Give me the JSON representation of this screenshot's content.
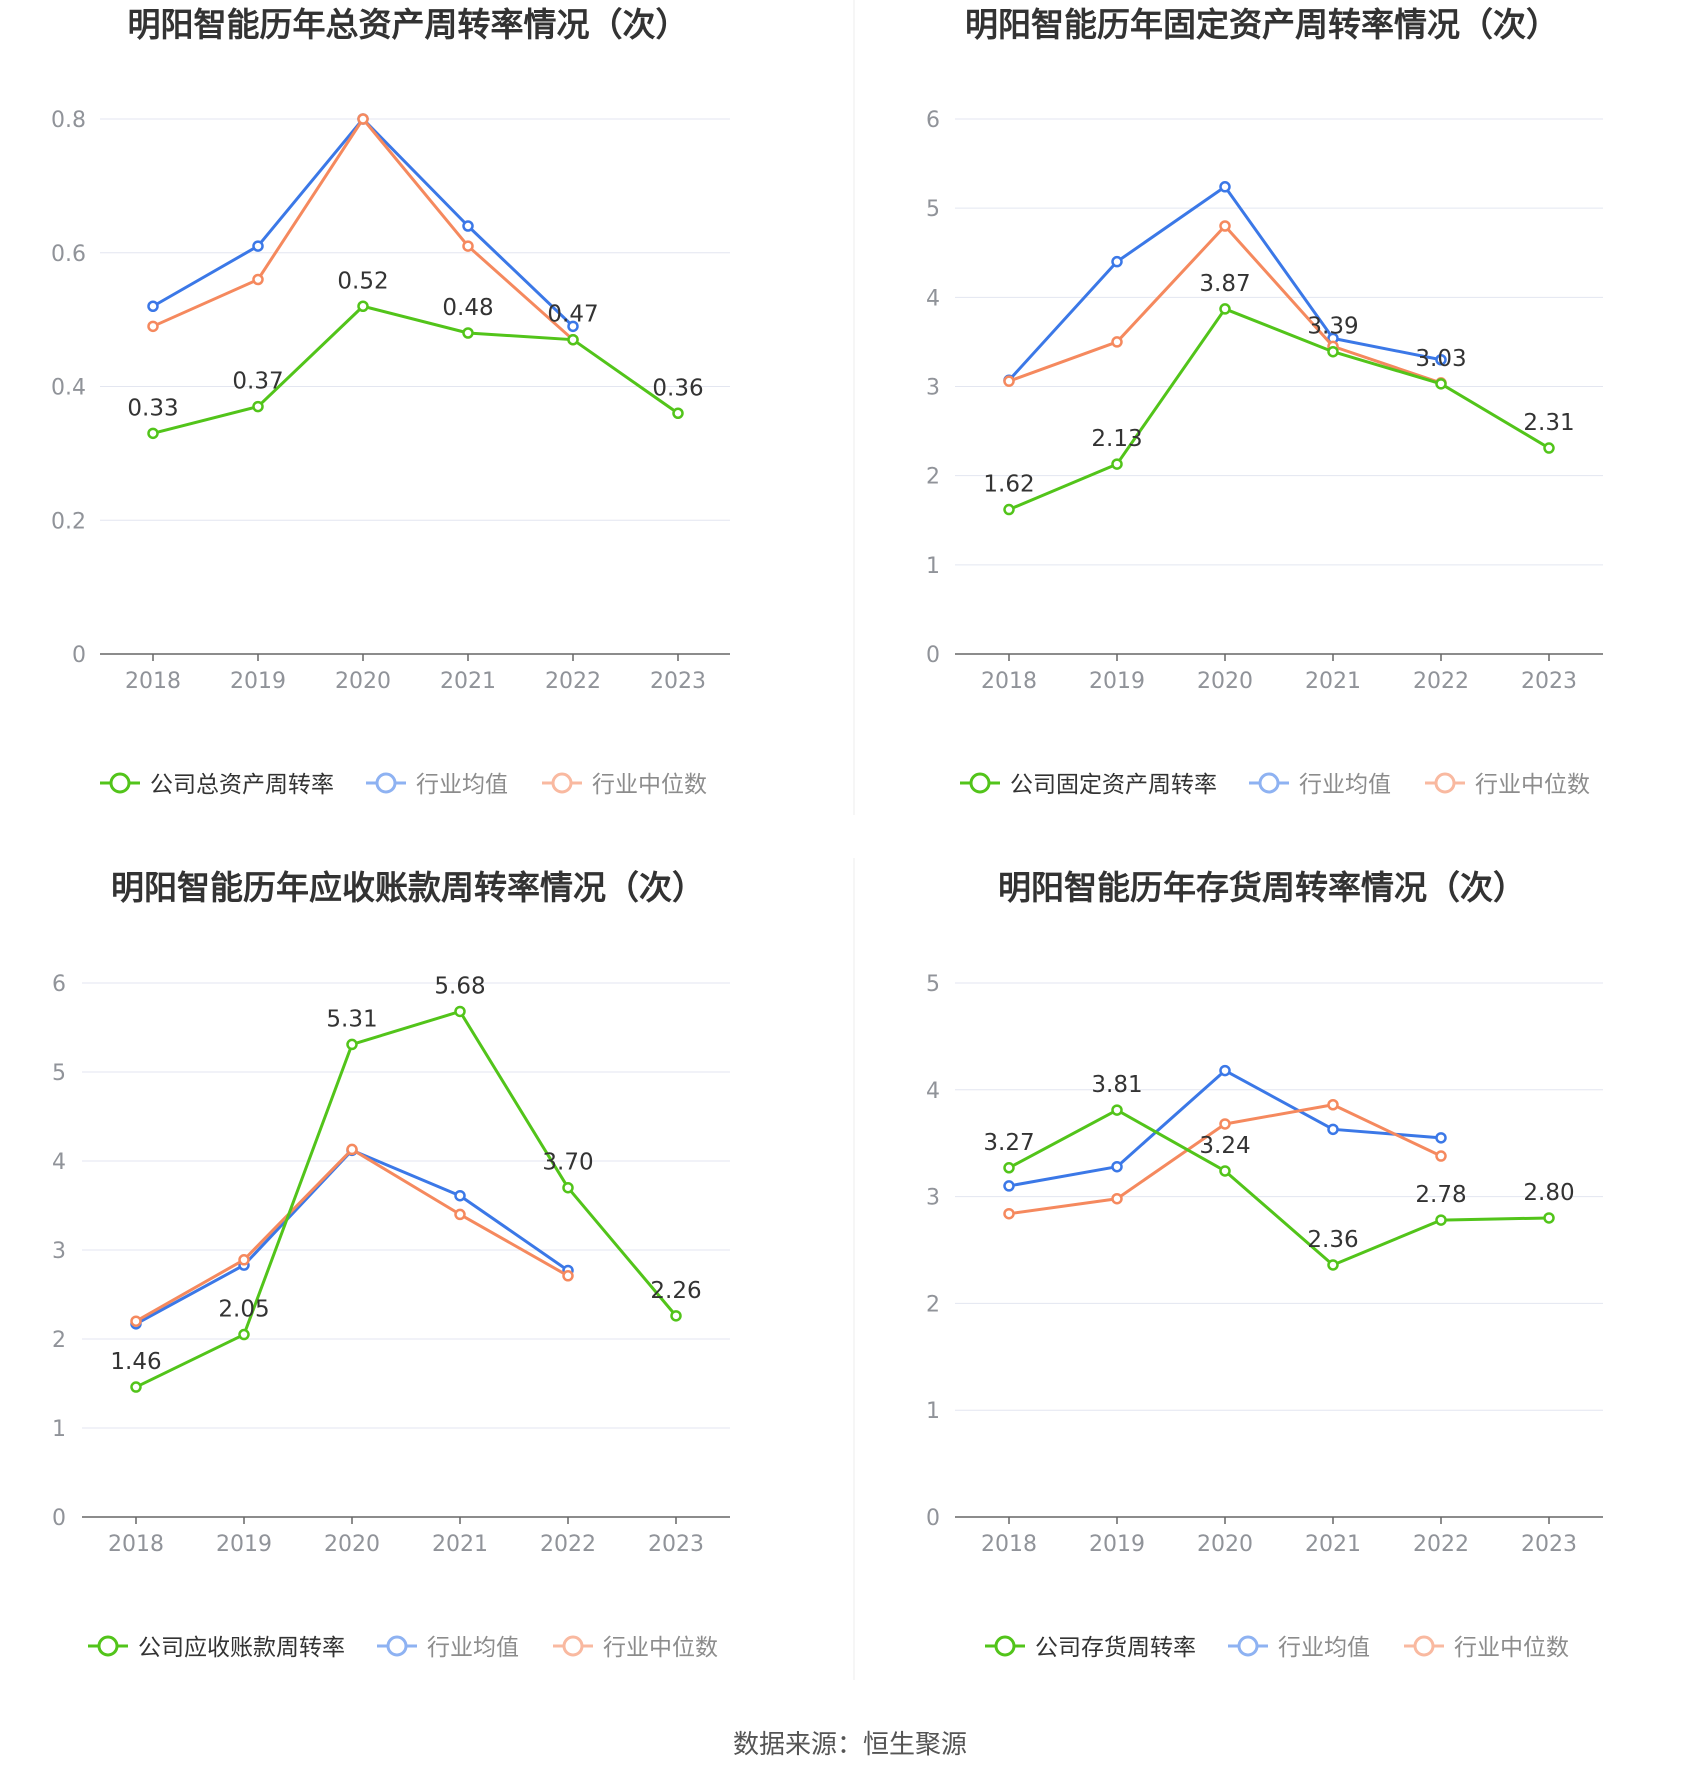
{
  "colors": {
    "company": "#52c41a",
    "avg": "#3b78e7",
    "median": "#f5895e",
    "grid": "#e3e6f0",
    "axis": "#666666",
    "tick": "#909399",
    "title": "#333333"
  },
  "legend_icons": {
    "company": "ring-line-icon",
    "avg": "ring-line-icon",
    "median": "ring-line-icon"
  },
  "footer": {
    "label": "数据来源：",
    "source": "恒生聚源"
  },
  "chart_data": [
    {
      "type": "line",
      "title": "明阳智能历年总资产周转率情况（次）",
      "categories": [
        "2018",
        "2019",
        "2020",
        "2021",
        "2022",
        "2023"
      ],
      "ylim": [
        0,
        0.8
      ],
      "yticks": [
        "0",
        "0.2",
        "0.4",
        "0.6",
        "0.8"
      ],
      "grid": true,
      "legend_position": "bottom",
      "series": [
        {
          "name": "公司总资产周转率",
          "key": "company",
          "values": [
            0.33,
            0.37,
            0.52,
            0.48,
            0.47,
            0.36
          ],
          "labels": [
            "0.33",
            "0.37",
            "0.52",
            "0.48",
            "0.47",
            "0.36"
          ]
        },
        {
          "name": "行业均值",
          "key": "avg",
          "values": [
            0.52,
            0.61,
            0.8,
            0.64,
            0.49,
            null
          ]
        },
        {
          "name": "行业中位数",
          "key": "median",
          "values": [
            0.49,
            0.56,
            0.8,
            0.61,
            0.47,
            null
          ]
        }
      ]
    },
    {
      "type": "line",
      "title": "明阳智能历年固定资产周转率情况（次）",
      "categories": [
        "2018",
        "2019",
        "2020",
        "2021",
        "2022",
        "2023"
      ],
      "ylim": [
        0,
        6
      ],
      "yticks": [
        "0",
        "1",
        "2",
        "3",
        "4",
        "5",
        "6"
      ],
      "grid": true,
      "legend_position": "bottom",
      "series": [
        {
          "name": "公司固定资产周转率",
          "key": "company",
          "values": [
            1.62,
            2.13,
            3.87,
            3.39,
            3.03,
            2.31
          ],
          "labels": [
            "1.62",
            "2.13",
            "3.87",
            "3.39",
            "3.03",
            "2.31"
          ]
        },
        {
          "name": "行业均值",
          "key": "avg",
          "values": [
            3.07,
            4.4,
            5.24,
            3.54,
            3.3,
            null
          ]
        },
        {
          "name": "行业中位数",
          "key": "median",
          "values": [
            3.06,
            3.5,
            4.8,
            3.45,
            3.04,
            null
          ]
        }
      ]
    },
    {
      "type": "line",
      "title": "明阳智能历年应收账款周转率情况（次）",
      "categories": [
        "2018",
        "2019",
        "2020",
        "2021",
        "2022",
        "2023"
      ],
      "ylim": [
        0,
        6
      ],
      "yticks": [
        "0",
        "1",
        "2",
        "3",
        "4",
        "5",
        "6"
      ],
      "grid": true,
      "legend_position": "bottom",
      "series": [
        {
          "name": "公司应收账款周转率",
          "key": "company",
          "values": [
            1.46,
            2.05,
            5.31,
            5.68,
            3.7,
            2.26
          ],
          "labels": [
            "1.46",
            "2.05",
            "5.31",
            "5.68",
            "3.70",
            "2.26"
          ]
        },
        {
          "name": "行业均值",
          "key": "avg",
          "values": [
            2.17,
            2.83,
            4.12,
            3.61,
            2.77,
            null
          ]
        },
        {
          "name": "行业中位数",
          "key": "median",
          "values": [
            2.2,
            2.89,
            4.13,
            3.4,
            2.71,
            null
          ]
        }
      ]
    },
    {
      "type": "line",
      "title": "明阳智能历年存货周转率情况（次）",
      "categories": [
        "2018",
        "2019",
        "2020",
        "2021",
        "2022",
        "2023"
      ],
      "ylim": [
        0,
        5
      ],
      "yticks": [
        "0",
        "1",
        "2",
        "3",
        "4",
        "5"
      ],
      "grid": true,
      "legend_position": "bottom",
      "series": [
        {
          "name": "公司存货周转率",
          "key": "company",
          "values": [
            3.27,
            3.81,
            3.24,
            2.36,
            2.78,
            2.8
          ],
          "labels": [
            "3.27",
            "3.81",
            "3.24",
            "2.36",
            "2.78",
            "2.80"
          ]
        },
        {
          "name": "行业均值",
          "key": "avg",
          "values": [
            3.1,
            3.28,
            4.18,
            3.63,
            3.55,
            null
          ]
        },
        {
          "name": "行业中位数",
          "key": "median",
          "values": [
            2.84,
            2.98,
            3.68,
            3.86,
            3.38,
            null
          ]
        }
      ]
    }
  ]
}
